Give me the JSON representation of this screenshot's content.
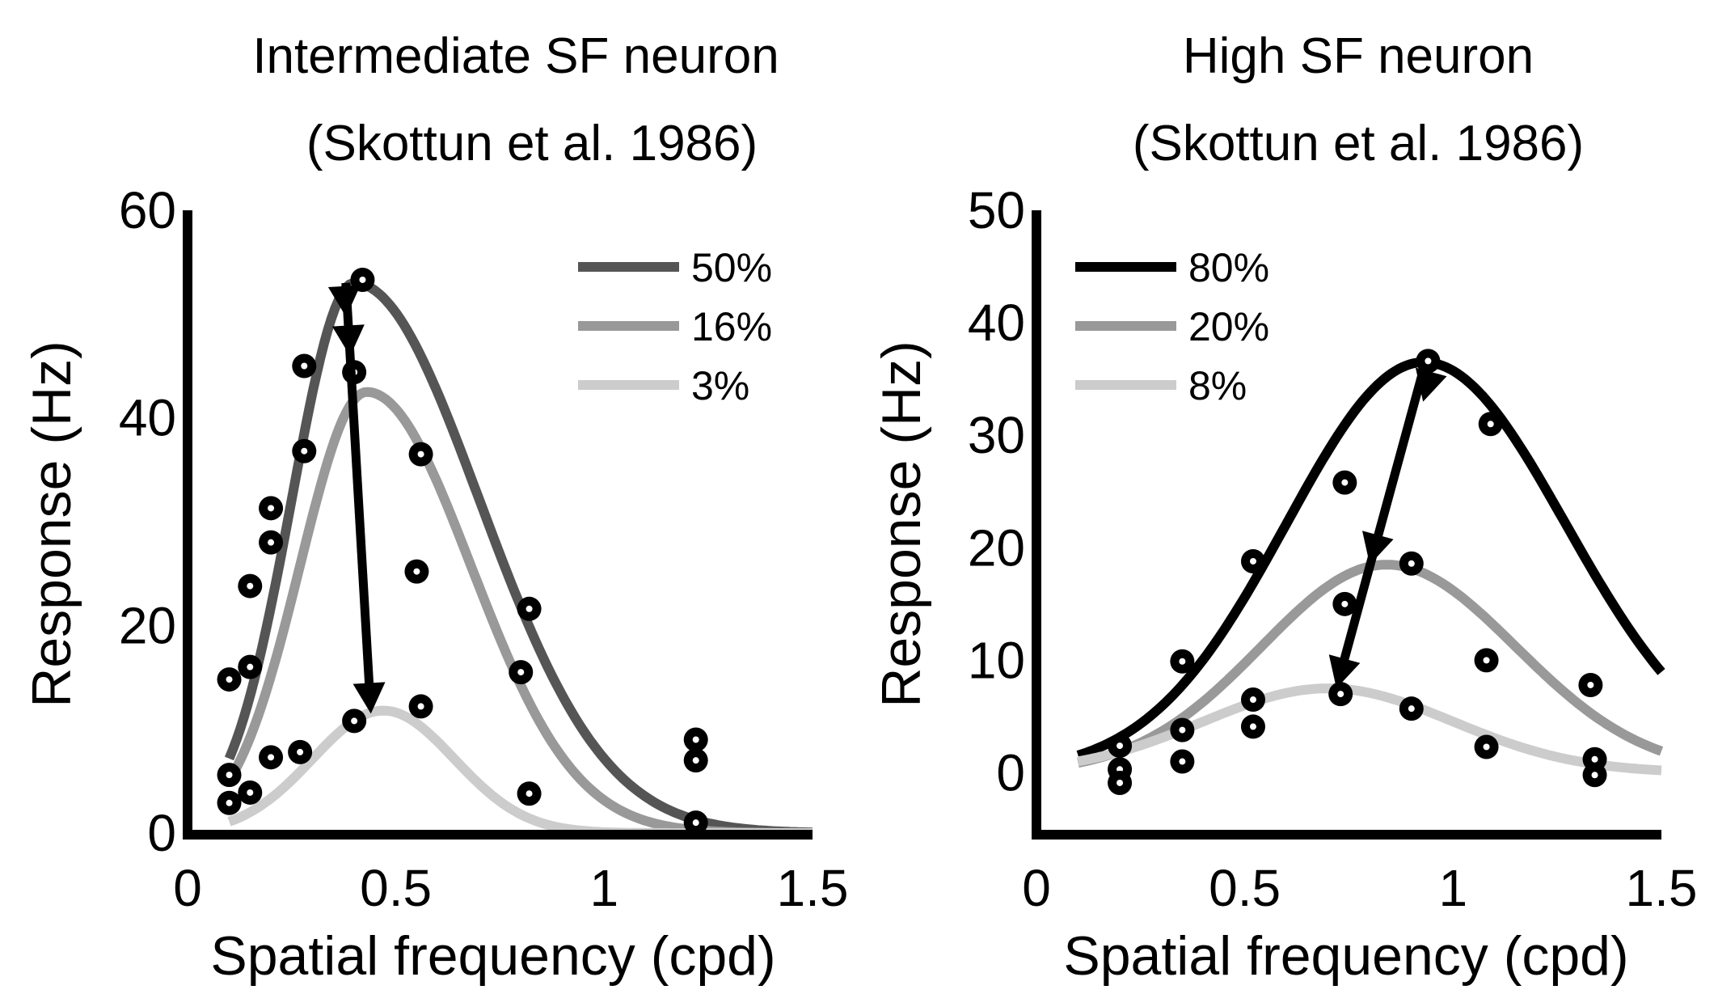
{
  "chart_data": [
    {
      "type": "line",
      "title": "Intermediate SF neuron",
      "subtitle": "(Skottun et al. 1986)",
      "xlabel": "Spatial frequency (cpd)",
      "ylabel": "Response (Hz)",
      "xlim": [
        0,
        1.5
      ],
      "ylim": [
        0,
        60
      ],
      "xticks": [
        0,
        0.5,
        1,
        1.5
      ],
      "xtick_labels": [
        "0",
        "0.5",
        "1",
        "1.5"
      ],
      "yticks": [
        0,
        20,
        40,
        60
      ],
      "ytick_labels": [
        "0",
        "20",
        "40",
        "60"
      ],
      "grid": false,
      "legend_position": "top-right",
      "series": [
        {
          "name": "50%",
          "color": "#555555",
          "curve": {
            "peak": 53,
            "center": 0.4,
            "width_low": 0.15,
            "width_high": 0.3,
            "x_start": 0.1,
            "x_end": 1.5
          },
          "points": [
            [
              0.1,
              14.8
            ],
            [
              0.15,
              23.8
            ],
            [
              0.2,
              31.3
            ],
            [
              0.28,
              45
            ],
            [
              0.28,
              36.8
            ],
            [
              0.42,
              53.3
            ],
            [
              0.56,
              36.5
            ],
            [
              0.55,
              25.2
            ],
            [
              0.82,
              21.6
            ]
          ]
        },
        {
          "name": "16%",
          "color": "#999999",
          "curve": {
            "peak": 42.5,
            "center": 0.43,
            "width_low": 0.16,
            "width_high": 0.25,
            "x_start": 0.1,
            "x_end": 1.5
          },
          "points": [
            [
              0.1,
              5.6
            ],
            [
              0.15,
              16
            ],
            [
              0.2,
              28
            ],
            [
              0.4,
              44.4
            ],
            [
              0.8,
              15.5
            ],
            [
              0.82,
              3.8
            ],
            [
              1.22,
              9
            ],
            [
              1.22,
              7
            ]
          ]
        },
        {
          "name": "3%",
          "color": "#cccccc",
          "curve": {
            "peak": 11.8,
            "center": 0.47,
            "width_low": 0.17,
            "width_high": 0.17,
            "x_start": 0.1,
            "x_end": 1.5
          },
          "points": [
            [
              0.1,
              2.9
            ],
            [
              0.15,
              3.9
            ],
            [
              0.2,
              7.3
            ],
            [
              0.27,
              7.8
            ],
            [
              0.4,
              10.8
            ],
            [
              0.56,
              12.2
            ],
            [
              1.22,
              1
            ]
          ]
        }
      ],
      "arrow": {
        "from": [
          0.38,
          53
        ],
        "to": [
          0.44,
          11.5
        ]
      }
    },
    {
      "type": "line",
      "title": "High SF neuron",
      "subtitle": "(Skottun et al. 1986)",
      "xlabel": "Spatial frequency (cpd)",
      "ylabel": "Response (Hz)",
      "xlim": [
        0,
        1.5
      ],
      "ylim": [
        -5,
        50
      ],
      "xticks": [
        0,
        0.5,
        1,
        1.5
      ],
      "xtick_labels": [
        "0",
        "0.5",
        "1",
        "1.5"
      ],
      "yticks": [
        0,
        10,
        20,
        30,
        40,
        50
      ],
      "ytick_labels": [
        "0",
        "10",
        "20",
        "30",
        "40",
        "50"
      ],
      "grid": false,
      "legend_position": "top-left",
      "series": [
        {
          "name": "80%",
          "color": "#000000",
          "curve": {
            "peak": 36.5,
            "center": 0.93,
            "width_low": 0.33,
            "width_high": 0.34,
            "x_start": 0.1,
            "x_end": 1.5
          },
          "points": [
            [
              0.2,
              2.4
            ],
            [
              0.35,
              9.9
            ],
            [
              0.52,
              18.8
            ],
            [
              0.74,
              25.8
            ],
            [
              0.94,
              36.6
            ],
            [
              1.09,
              31
            ],
            [
              1.33,
              7.8
            ]
          ]
        },
        {
          "name": "20%",
          "color": "#999999",
          "curve": {
            "peak": 18.5,
            "center": 0.84,
            "width_low": 0.3,
            "width_high": 0.31,
            "x_start": 0.1,
            "x_end": 1.5
          },
          "points": [
            [
              0.2,
              0.3
            ],
            [
              0.35,
              3.8
            ],
            [
              0.52,
              6.5
            ],
            [
              0.74,
              15
            ],
            [
              0.9,
              18.6
            ],
            [
              1.08,
              10
            ],
            [
              1.34,
              1.2
            ]
          ]
        },
        {
          "name": "8%",
          "color": "#cccccc",
          "curve": {
            "peak": 7.5,
            "center": 0.7,
            "width_low": 0.3,
            "width_high": 0.3,
            "x_start": 0.1,
            "x_end": 1.5
          },
          "points": [
            [
              0.2,
              -0.9
            ],
            [
              0.35,
              1
            ],
            [
              0.52,
              4.1
            ],
            [
              0.73,
              7
            ],
            [
              0.9,
              5.7
            ],
            [
              1.08,
              2.3
            ],
            [
              1.34,
              -0.2
            ]
          ]
        }
      ],
      "arrow": {
        "from": [
          0.93,
          36
        ],
        "to": [
          0.72,
          7.5
        ],
        "mid_head": [
          0.8,
          18.5
        ]
      }
    }
  ]
}
